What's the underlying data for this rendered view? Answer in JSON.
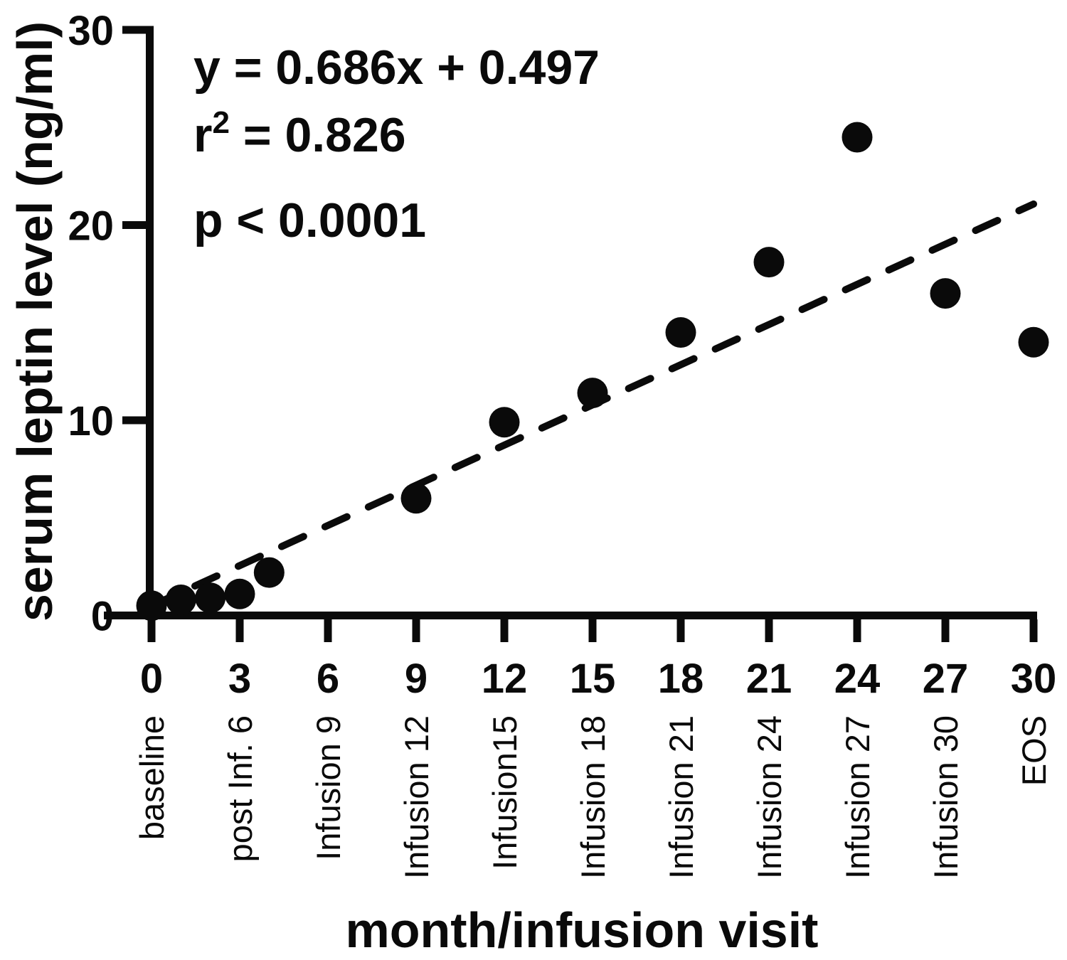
{
  "figure": {
    "background": "#ffffff",
    "description": "Scatter plot of serum leptin level versus month/infusion visit with dashed linear-regression trendline"
  },
  "chart_data": {
    "type": "scatter",
    "title": "",
    "xlabel": "month/infusion visit",
    "ylabel": "serum leptin level (ng/ml)",
    "xlim": [
      0,
      30
    ],
    "ylim": [
      0,
      30
    ],
    "grid": false,
    "legend": null,
    "x_ticks": [
      0,
      3,
      6,
      9,
      12,
      15,
      18,
      21,
      24,
      27,
      30
    ],
    "x_tick_visit_labels": [
      "baseline",
      "post Inf. 6",
      "Infusion 9",
      "Infusion 12",
      "Infusion15",
      "Infusion 18",
      "Infusion 21",
      "Infusion 24",
      "Infusion 27",
      "Infusion 30",
      "EOS"
    ],
    "y_ticks": [
      0,
      10,
      20,
      30
    ],
    "points": [
      [
        0,
        0.5
      ],
      [
        1,
        0.8
      ],
      [
        2,
        0.9
      ],
      [
        3,
        1.1
      ],
      [
        4,
        2.2
      ],
      [
        9,
        6.0
      ],
      [
        12,
        9.9
      ],
      [
        15,
        11.4
      ],
      [
        18,
        14.5
      ],
      [
        21,
        18.1
      ],
      [
        24,
        24.5
      ],
      [
        27,
        16.5
      ],
      [
        30,
        14.0
      ]
    ],
    "trendline": {
      "style": "dashed",
      "slope": 0.686,
      "intercept": 0.497,
      "x_start": 0,
      "x_end": 30
    },
    "annotations": [
      "y = 0.686x + 0.497",
      "r² = 0.826",
      "p < 0.0001"
    ],
    "colors": {
      "points": "#0a0a0a",
      "line": "#0a0a0a",
      "axis": "#0a0a0a",
      "text": "#0a0a0a",
      "background": "#ffffff"
    }
  }
}
